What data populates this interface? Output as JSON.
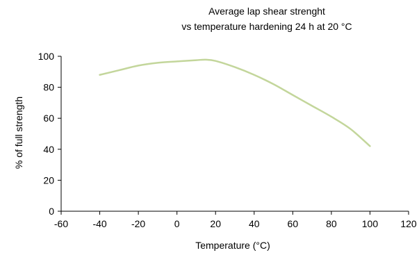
{
  "chart_data": {
    "type": "line",
    "title": "Average lap shear strenght",
    "subtitle": "vs temperature hardening 24 h at 20 °C",
    "xlabel": "Temperature (°C)",
    "ylabel": "% of full strength",
    "xlim": [
      -60,
      120
    ],
    "ylim": [
      0,
      100
    ],
    "x_ticks": [
      -60,
      -40,
      -20,
      0,
      20,
      40,
      60,
      80,
      100,
      120
    ],
    "y_ticks": [
      0,
      20,
      40,
      60,
      80,
      100
    ],
    "grid": false,
    "legend": "none",
    "series": [
      {
        "color": "#c3d69b",
        "x": [
          -40,
          -30,
          -20,
          -10,
          0,
          10,
          15,
          20,
          30,
          40,
          50,
          60,
          70,
          80,
          90,
          100
        ],
        "y": [
          88,
          91,
          94,
          95.8,
          96.7,
          97.5,
          97.8,
          97,
          93,
          88,
          82,
          75,
          68,
          61,
          53,
          42
        ]
      }
    ]
  }
}
